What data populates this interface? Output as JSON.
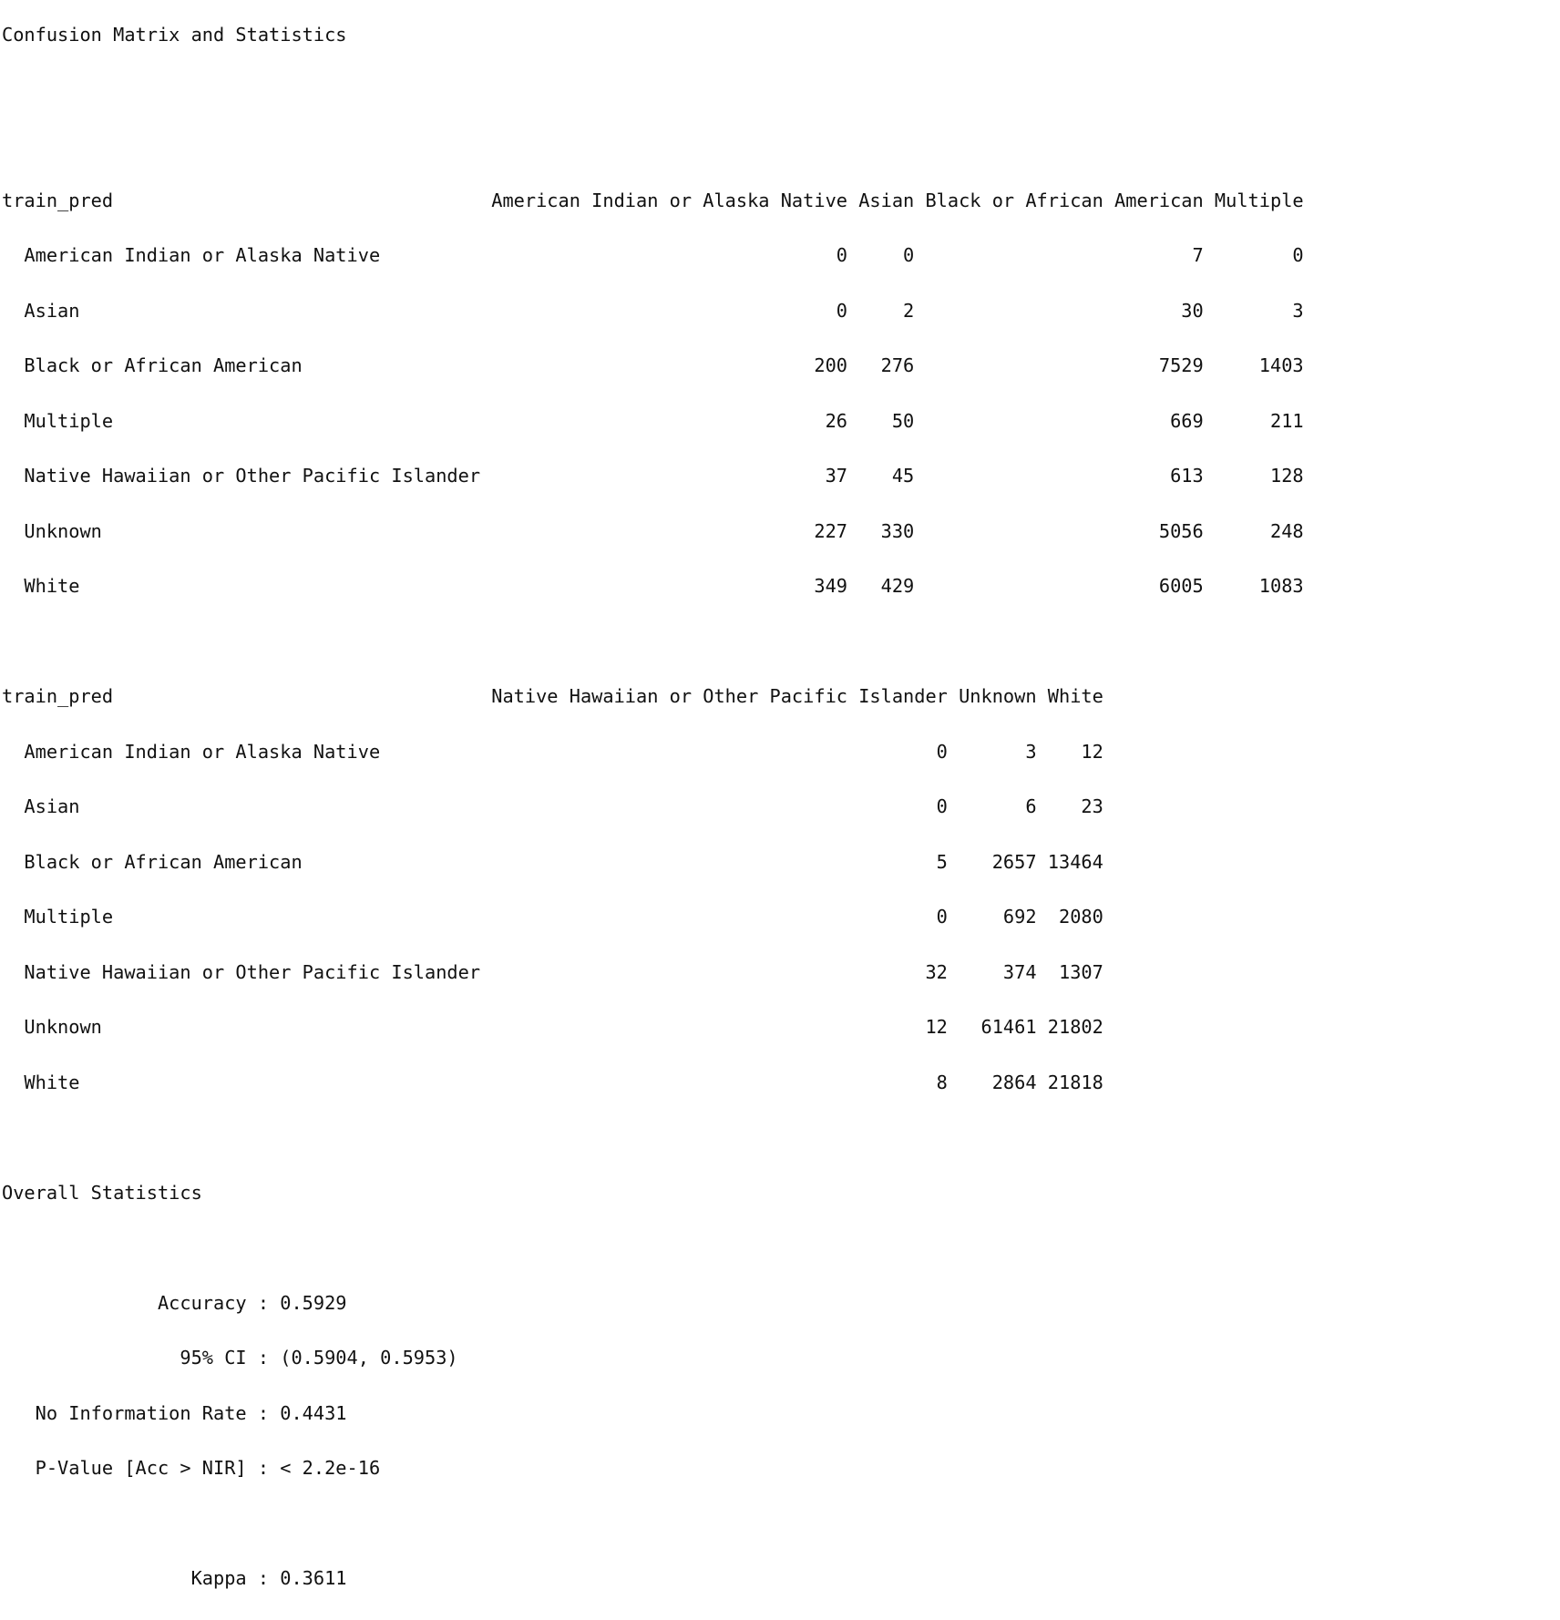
{
  "title": "Confusion Matrix and Statistics",
  "matrix_part1": {
    "header": {
      "row_var": "train_pred",
      "columns": [
        "American Indian or Alaska Native",
        "Asian",
        "Black or African American",
        "Multiple"
      ]
    },
    "rows": [
      {
        "label": "American Indian or Alaska Native",
        "values": [
          "0",
          "0",
          "7",
          "0"
        ]
      },
      {
        "label": "Asian",
        "values": [
          "0",
          "2",
          "30",
          "3"
        ]
      },
      {
        "label": "Black or African American",
        "values": [
          "200",
          "276",
          "7529",
          "1403"
        ]
      },
      {
        "label": "Multiple",
        "values": [
          "26",
          "50",
          "669",
          "211"
        ]
      },
      {
        "label": "Native Hawaiian or Other Pacific Islander",
        "values": [
          "37",
          "45",
          "613",
          "128"
        ]
      },
      {
        "label": "Unknown",
        "values": [
          "227",
          "330",
          "5056",
          "248"
        ]
      },
      {
        "label": "White",
        "values": [
          "349",
          "429",
          "6005",
          "1083"
        ]
      }
    ]
  },
  "matrix_part2": {
    "header": {
      "row_var": "train_pred",
      "columns": [
        "Native Hawaiian or Other Pacific Islander",
        "Unknown",
        "White"
      ]
    },
    "rows": [
      {
        "label": "American Indian or Alaska Native",
        "values": [
          "0",
          "3",
          "12"
        ]
      },
      {
        "label": "Asian",
        "values": [
          "0",
          "6",
          "23"
        ]
      },
      {
        "label": "Black or African American",
        "values": [
          "5",
          "2657",
          "13464"
        ]
      },
      {
        "label": "Multiple",
        "values": [
          "0",
          "692",
          "2080"
        ]
      },
      {
        "label": "Native Hawaiian or Other Pacific Islander",
        "values": [
          "32",
          "374",
          "1307"
        ]
      },
      {
        "label": "Unknown",
        "values": [
          "12",
          "61461",
          "21802"
        ]
      },
      {
        "label": "White",
        "values": [
          "8",
          "2864",
          "21818"
        ]
      }
    ]
  },
  "overall": {
    "heading": "Overall Statistics",
    "stats": [
      {
        "label": "Accuracy",
        "value": "0.5929"
      },
      {
        "label": "95% CI",
        "value": "(0.5904, 0.5953)"
      },
      {
        "label": "No Information Rate",
        "value": "0.4431"
      },
      {
        "label": "P-Value [Acc > NIR]",
        "value": "< 2.2e-16"
      },
      {
        "label": "",
        "value": ""
      },
      {
        "label": "Kappa",
        "value": "0.3611"
      }
    ]
  }
}
